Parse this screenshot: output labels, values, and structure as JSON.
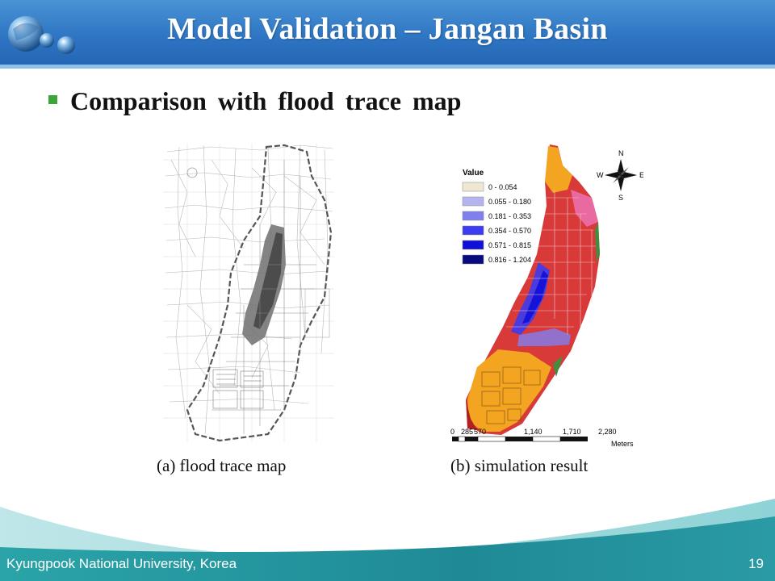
{
  "header": {
    "title": "Model Validation – Jangan Basin"
  },
  "content": {
    "bullet": "Comparison with flood trace map",
    "map_a_caption": "(a) flood trace map",
    "map_b_caption": "(b) simulation result"
  },
  "simulation_map": {
    "legend_title": "Value",
    "legend": [
      {
        "label": "0 - 0.054",
        "color": "#efe7d2"
      },
      {
        "label": "0.055 - 0.180",
        "color": "#b4b4f0"
      },
      {
        "label": "0.181 - 0.353",
        "color": "#7f7ff0"
      },
      {
        "label": "0.354 - 0.570",
        "color": "#3c3cf0"
      },
      {
        "label": "0.571 - 0.815",
        "color": "#1010d8"
      },
      {
        "label": "0.816 - 1.204",
        "color": "#0a0a80"
      }
    ],
    "scale_labels": [
      "0",
      "285",
      "570",
      "1,140",
      "1,710",
      "2,280"
    ],
    "scale_unit": "Meters",
    "compass": [
      "N",
      "E",
      "S",
      "W"
    ]
  },
  "footer": {
    "university": "Kyungpook National University, Korea",
    "page_number": "19"
  },
  "colors": {
    "header_blue": "#2f76c4",
    "bullet_green": "#3aa63a",
    "footer_teal": "#1f8a96"
  }
}
